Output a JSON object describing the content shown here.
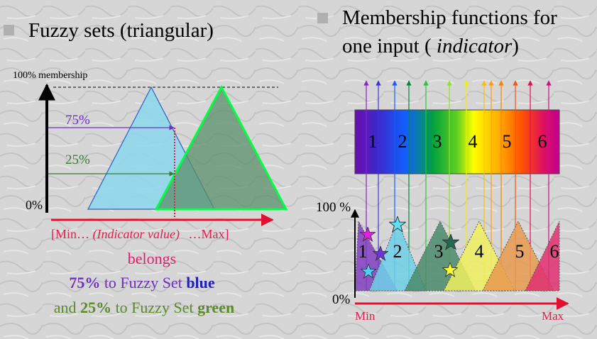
{
  "left": {
    "title": "Fuzzy sets (triangular)",
    "y_axis_top": "100% membership",
    "level_high": "75%",
    "level_low": "25%",
    "y_axis_zero": "0%",
    "x_axis": {
      "min": "[Min…",
      "middle": "(Indicator value)",
      "max": "…Max]"
    },
    "caption": {
      "line1": "belongs",
      "line2": [
        "75%",
        "to Fuzzy Set",
        "blue"
      ],
      "line3": [
        "and",
        "25%",
        "to Fuzzy Set",
        "green"
      ]
    }
  },
  "right": {
    "title_line1": "Membership functions for",
    "title_line2": [
      "one input (",
      "indicator",
      ")"
    ],
    "band_labels": [
      "1",
      "2",
      "3",
      "4",
      "5",
      "6"
    ],
    "set_labels": [
      "1",
      "2",
      "3",
      "4",
      "5",
      "6"
    ],
    "y_axis_top": "100 %",
    "y_axis_zero": "0%",
    "x_axis_min": "Min",
    "x_axis_max": "Max"
  }
}
